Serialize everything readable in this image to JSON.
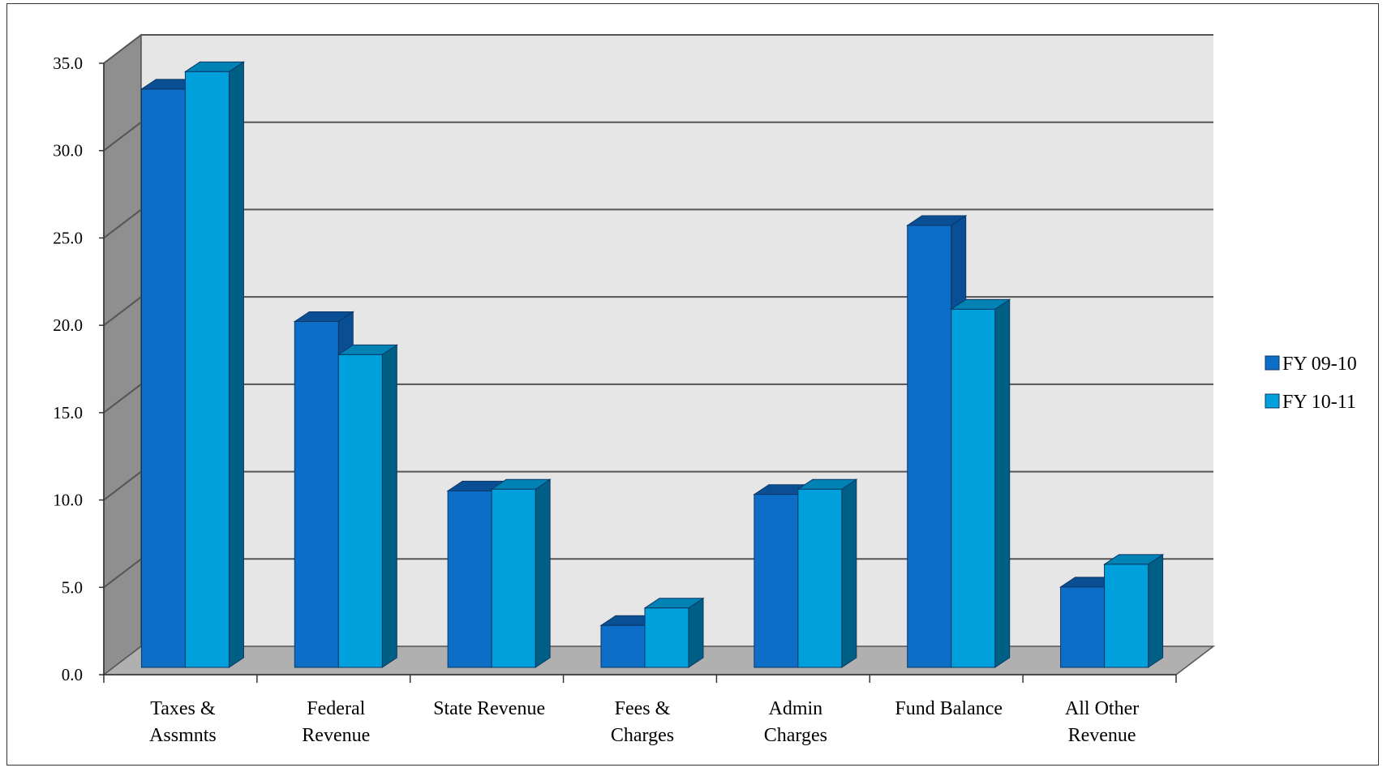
{
  "chart_data": {
    "type": "bar",
    "title": "",
    "xlabel": "",
    "ylabel": "",
    "ylim": [
      0,
      35
    ],
    "yticks": [
      "0.0",
      "5.0",
      "10.0",
      "15.0",
      "20.0",
      "25.0",
      "30.0",
      "35.0"
    ],
    "grid": true,
    "legend_position": "right",
    "categories": [
      [
        "Taxes &",
        "Assmnts"
      ],
      [
        "Federal",
        "Revenue"
      ],
      [
        "State Revenue"
      ],
      [
        "Fees &",
        "Charges"
      ],
      [
        "Admin",
        "Charges"
      ],
      [
        "Fund Balance"
      ],
      [
        "All Other",
        "Revenue"
      ]
    ],
    "series": [
      {
        "name": "FY 09-10",
        "color": "#0d6ec7",
        "top_color": "#0a4f94",
        "side_color": "#0a4f94",
        "values": [
          33.1,
          19.8,
          10.1,
          2.4,
          9.9,
          25.3,
          4.6
        ]
      },
      {
        "name": "FY 10-11",
        "color": "#00a0dc",
        "top_color": "#0083b4",
        "side_color": "#005f85",
        "values": [
          34.1,
          17.9,
          10.2,
          3.4,
          10.2,
          20.5,
          5.9
        ]
      }
    ]
  }
}
